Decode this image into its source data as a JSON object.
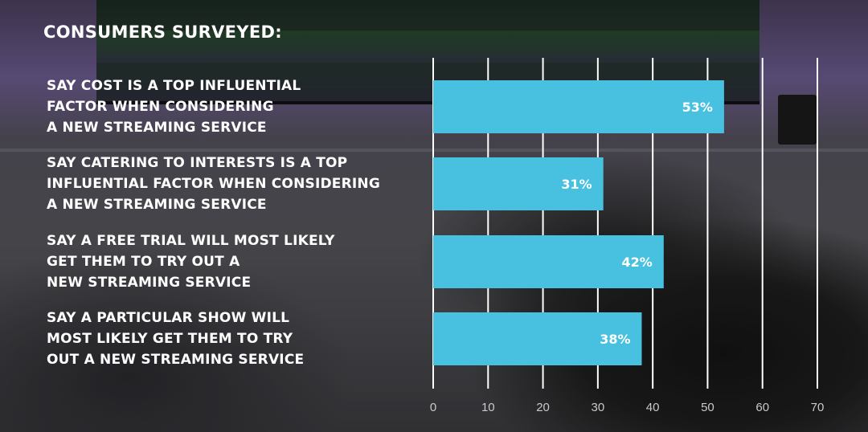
{
  "heading": "CONSUMERS SURVEYED:",
  "colors": {
    "bar": "#48c0e0",
    "grid": "#ffffff",
    "label_text": "#ffffff",
    "tick_text": "#c9c9c9"
  },
  "chart_data": {
    "type": "bar",
    "orientation": "horizontal",
    "categories": [
      "SAY COST IS A TOP INFLUENTIAL\nFACTOR WHEN CONSIDERING\nA NEW STREAMING SERVICE",
      "SAY CATERING TO INTERESTS IS A TOP\nINFLUENTIAL FACTOR WHEN CONSIDERING\nA NEW STREAMING SERVICE",
      "SAY A FREE TRIAL WILL MOST LIKELY\nGET THEM TO TRY OUT A\nNEW STREAMING SERVICE",
      "SAY A PARTICULAR SHOW WILL\nMOST LIKELY GET THEM TO TRY\nOUT A NEW STREAMING SERVICE"
    ],
    "values": [
      53,
      31,
      42,
      38
    ],
    "data_labels": [
      "53%",
      "31%",
      "42%",
      "38%"
    ],
    "xlim": [
      0,
      70
    ],
    "xticks": [
      "0",
      "10",
      "20",
      "30",
      "40",
      "50",
      "60",
      "70"
    ],
    "grid": true,
    "title": "",
    "xlabel": "",
    "ylabel": ""
  }
}
